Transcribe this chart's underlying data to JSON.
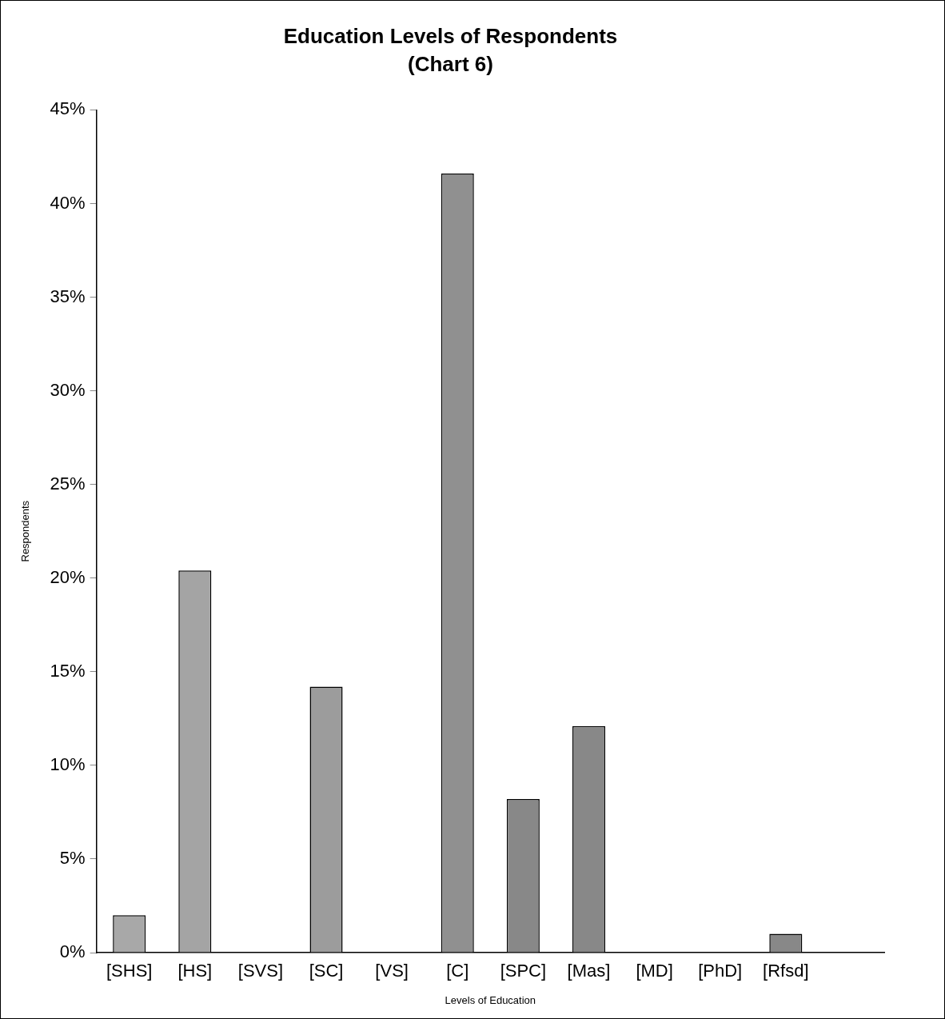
{
  "chart_data": {
    "type": "bar",
    "title": "Education Levels of Respondents",
    "subtitle": "(Chart 6)",
    "xlabel": "Levels of Education",
    "ylabel": "Respondents",
    "categories": [
      "[SHS]",
      "[HS]",
      "[SVS]",
      "[SC]",
      "[VS]",
      "[C]",
      "[SPC]",
      "[Mas]",
      "[MD]",
      "[PhD]",
      "[Rfsd]",
      null
    ],
    "values": [
      2.0,
      20.4,
      0,
      14.2,
      0,
      41.6,
      8.2,
      12.1,
      0,
      0,
      1.0,
      null
    ],
    "colors": [
      "#a8a8a8",
      "#a4a4a4",
      "#a0a0a0",
      "#9c9c9c",
      "#989898",
      "#909090",
      "#888888",
      "#888888",
      "#888888",
      "#888888",
      "#888888",
      "#888888"
    ],
    "ylim": [
      0,
      45
    ],
    "yticks": [
      {
        "value": 0,
        "label": "0%"
      },
      {
        "value": 5,
        "label": "5%"
      },
      {
        "value": 10,
        "label": "10%"
      },
      {
        "value": 15,
        "label": "15%"
      },
      {
        "value": 20,
        "label": "20%"
      },
      {
        "value": 25,
        "label": "25%"
      },
      {
        "value": 30,
        "label": "30%"
      },
      {
        "value": 35,
        "label": "35%"
      },
      {
        "value": 40,
        "label": "40%"
      },
      {
        "value": 45,
        "label": "45%"
      }
    ],
    "grid": false,
    "legend": false
  }
}
